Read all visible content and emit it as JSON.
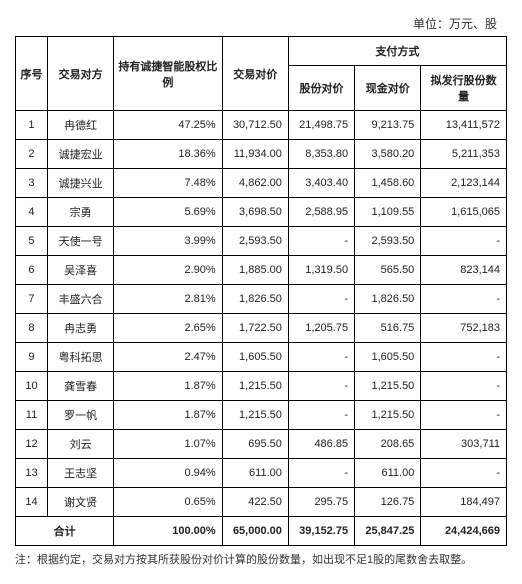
{
  "unit_label": "单位：万元、股",
  "headers": {
    "seq": "序号",
    "party": "交易对方",
    "ratio": "持有诚捷智能股权比例",
    "price": "交易对价",
    "pay_group": "支付方式",
    "share_pay": "股份对价",
    "cash_pay": "现金对价",
    "issue_qty": "拟发行股份数量"
  },
  "rows": [
    {
      "seq": "1",
      "party": "冉德红",
      "ratio": "47.25%",
      "price": "30,712.50",
      "share": "21,498.75",
      "cash": "9,213.75",
      "qty": "13,411,572"
    },
    {
      "seq": "2",
      "party": "诚捷宏业",
      "ratio": "18.36%",
      "price": "11,934.00",
      "share": "8,353.80",
      "cash": "3,580.20",
      "qty": "5,211,353"
    },
    {
      "seq": "3",
      "party": "诚捷兴业",
      "ratio": "7.48%",
      "price": "4,862.00",
      "share": "3,403.40",
      "cash": "1,458.60",
      "qty": "2,123,144"
    },
    {
      "seq": "4",
      "party": "宗勇",
      "ratio": "5.69%",
      "price": "3,698.50",
      "share": "2,588.95",
      "cash": "1,109.55",
      "qty": "1,615,065"
    },
    {
      "seq": "5",
      "party": "天使一号",
      "ratio": "3.99%",
      "price": "2,593.50",
      "share": "-",
      "cash": "2,593.50",
      "qty": "-"
    },
    {
      "seq": "6",
      "party": "吴泽喜",
      "ratio": "2.90%",
      "price": "1,885.00",
      "share": "1,319.50",
      "cash": "565.50",
      "qty": "823,144"
    },
    {
      "seq": "7",
      "party": "丰盛六合",
      "ratio": "2.81%",
      "price": "1,826.50",
      "share": "-",
      "cash": "1,826.50",
      "qty": "-"
    },
    {
      "seq": "8",
      "party": "冉志勇",
      "ratio": "2.65%",
      "price": "1,722.50",
      "share": "1,205.75",
      "cash": "516.75",
      "qty": "752,183"
    },
    {
      "seq": "9",
      "party": "粤科拓思",
      "ratio": "2.47%",
      "price": "1,605.50",
      "share": "-",
      "cash": "1,605.50",
      "qty": "-"
    },
    {
      "seq": "10",
      "party": "龚雪春",
      "ratio": "1.87%",
      "price": "1,215.50",
      "share": "-",
      "cash": "1,215.50",
      "qty": "-"
    },
    {
      "seq": "11",
      "party": "罗一帆",
      "ratio": "1.87%",
      "price": "1,215.50",
      "share": "-",
      "cash": "1,215.50",
      "qty": "-"
    },
    {
      "seq": "12",
      "party": "刘云",
      "ratio": "1.07%",
      "price": "695.50",
      "share": "486.85",
      "cash": "208.65",
      "qty": "303,711"
    },
    {
      "seq": "13",
      "party": "王志坚",
      "ratio": "0.94%",
      "price": "611.00",
      "share": "-",
      "cash": "611.00",
      "qty": "-"
    },
    {
      "seq": "14",
      "party": "谢文贤",
      "ratio": "0.65%",
      "price": "422.50",
      "share": "295.75",
      "cash": "126.75",
      "qty": "184,497"
    }
  ],
  "total": {
    "label": "合计",
    "ratio": "100.00%",
    "price": "65,000.00",
    "share": "39,152.75",
    "cash": "25,847.25",
    "qty": "24,424,669"
  },
  "note": "注：根据约定，交易对方按其所获股份对价计算的股份数量，如出现不足1股的尾数舍去取整。"
}
